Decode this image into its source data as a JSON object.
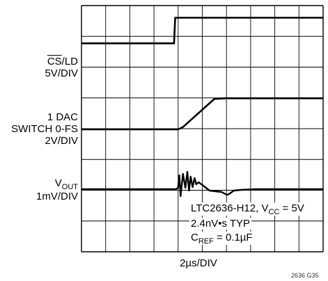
{
  "chart_data": {
    "type": "line",
    "x_label": "2µs/DIV",
    "figure_id": "2636 G35",
    "grid": {
      "cols": 10,
      "rows": 8
    },
    "channels": [
      {
        "name_pre": "",
        "name_over": "CS",
        "name_post": "/LD",
        "scale": "5V/DIV"
      },
      {
        "name_line1": "1 DAC",
        "name_line2": "SWITCH 0-FS",
        "scale": "2V/DIV"
      },
      {
        "name_main": "V",
        "name_sub": "OUT",
        "scale": "1mV/DIV"
      }
    ],
    "annotation": {
      "line1_pre": "LTC2636-H12, V",
      "line1_sub": "CC",
      "line1_post": " = 5V",
      "line2": "2.4nV•s TYP",
      "line3_pre": "C",
      "line3_sub": "REF",
      "line3_post": " = 0.1µF"
    },
    "traces": {
      "cs_ld": [
        [
          0,
          0.94
        ],
        [
          3.83,
          0.94
        ],
        [
          3.88,
          1.94
        ],
        [
          10,
          1.94
        ]
      ],
      "dac_switch": [
        [
          0,
          0
        ],
        [
          4.0,
          0
        ],
        [
          4.2,
          0.15
        ],
        [
          5.5,
          2.0
        ],
        [
          6.0,
          2.04
        ],
        [
          10,
          2.04
        ]
      ],
      "vout": [
        [
          0,
          0
        ],
        [
          3.9,
          0
        ],
        [
          4.0,
          0.1
        ],
        [
          4.05,
          1.0
        ],
        [
          4.1,
          -0.5
        ],
        [
          4.2,
          1.1
        ],
        [
          4.3,
          0.1
        ],
        [
          4.38,
          1.25
        ],
        [
          4.45,
          -0.1
        ],
        [
          4.52,
          0.9
        ],
        [
          4.6,
          0.15
        ],
        [
          4.68,
          0.8
        ],
        [
          4.75,
          0.35
        ],
        [
          4.85,
          0.5
        ],
        [
          5.0,
          0.3
        ],
        [
          5.3,
          -0.1
        ],
        [
          5.8,
          -0.2
        ],
        [
          5.95,
          -0.35
        ],
        [
          6.05,
          -0.4
        ],
        [
          6.15,
          -0.3
        ],
        [
          6.3,
          -0.1
        ],
        [
          6.6,
          -0.05
        ],
        [
          7.2,
          0
        ],
        [
          10,
          0
        ]
      ]
    }
  }
}
